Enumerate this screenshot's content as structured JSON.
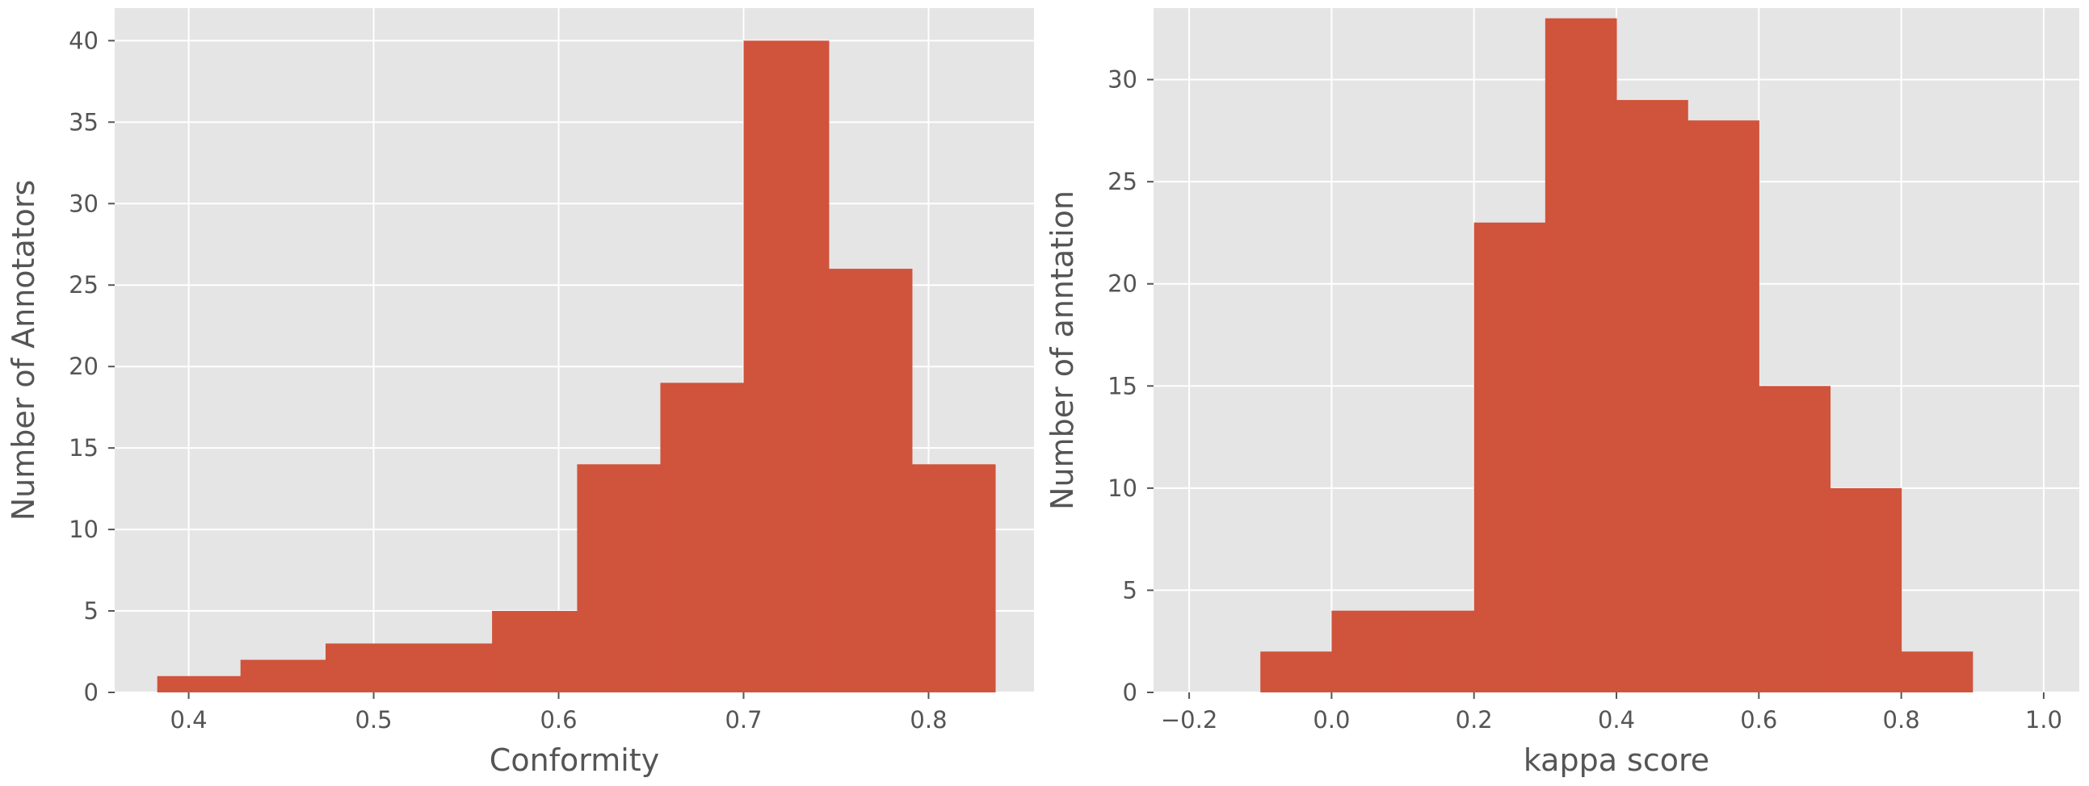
{
  "chart_data": [
    {
      "type": "bar",
      "subtype": "histogram",
      "title": "",
      "xlabel": "Conformity",
      "ylabel": "Number of Annotators",
      "xlim": [
        0.36,
        0.857
      ],
      "ylim": [
        0,
        42
      ],
      "xticks": [
        0.4,
        0.5,
        0.6,
        0.7,
        0.8
      ],
      "xtick_labels": [
        "0.4",
        "0.5",
        "0.6",
        "0.7",
        "0.8"
      ],
      "yticks": [
        0,
        5,
        10,
        15,
        20,
        25,
        30,
        35,
        40
      ],
      "ytick_labels": [
        "0",
        "5",
        "10",
        "15",
        "20",
        "25",
        "30",
        "35",
        "40"
      ],
      "bin_edges": [
        0.383,
        0.428,
        0.474,
        0.519,
        0.564,
        0.61,
        0.655,
        0.7,
        0.746,
        0.791,
        0.836
      ],
      "counts": [
        1,
        2,
        3,
        3,
        5,
        14,
        19,
        40,
        26,
        14
      ],
      "grid": true,
      "style": "ggplot",
      "bar_color": "#D0533C",
      "background_color": "#E5E5E5",
      "grid_color": "#FFFFFF"
    },
    {
      "type": "bar",
      "subtype": "histogram",
      "title": "",
      "xlabel": "kappa score",
      "ylabel": "Number of anntation",
      "xlim": [
        -0.25,
        1.05
      ],
      "ylim": [
        0,
        33.5
      ],
      "xticks": [
        -0.2,
        0.0,
        0.2,
        0.4,
        0.6,
        0.8,
        1.0
      ],
      "xtick_labels": [
        "−0.2",
        "0.0",
        "0.2",
        "0.4",
        "0.6",
        "0.8",
        "1.0"
      ],
      "yticks": [
        0,
        5,
        10,
        15,
        20,
        25,
        30
      ],
      "ytick_labels": [
        "0",
        "5",
        "10",
        "15",
        "20",
        "25",
        "30"
      ],
      "bin_edges": [
        -0.1,
        0.0,
        0.1,
        0.2,
        0.3,
        0.4,
        0.5,
        0.6,
        0.7,
        0.8,
        0.9
      ],
      "counts": [
        2,
        4,
        4,
        23,
        33,
        29,
        28,
        15,
        10,
        2
      ],
      "grid": true,
      "style": "ggplot",
      "bar_color": "#D0533C",
      "background_color": "#E5E5E5",
      "grid_color": "#FFFFFF"
    }
  ]
}
